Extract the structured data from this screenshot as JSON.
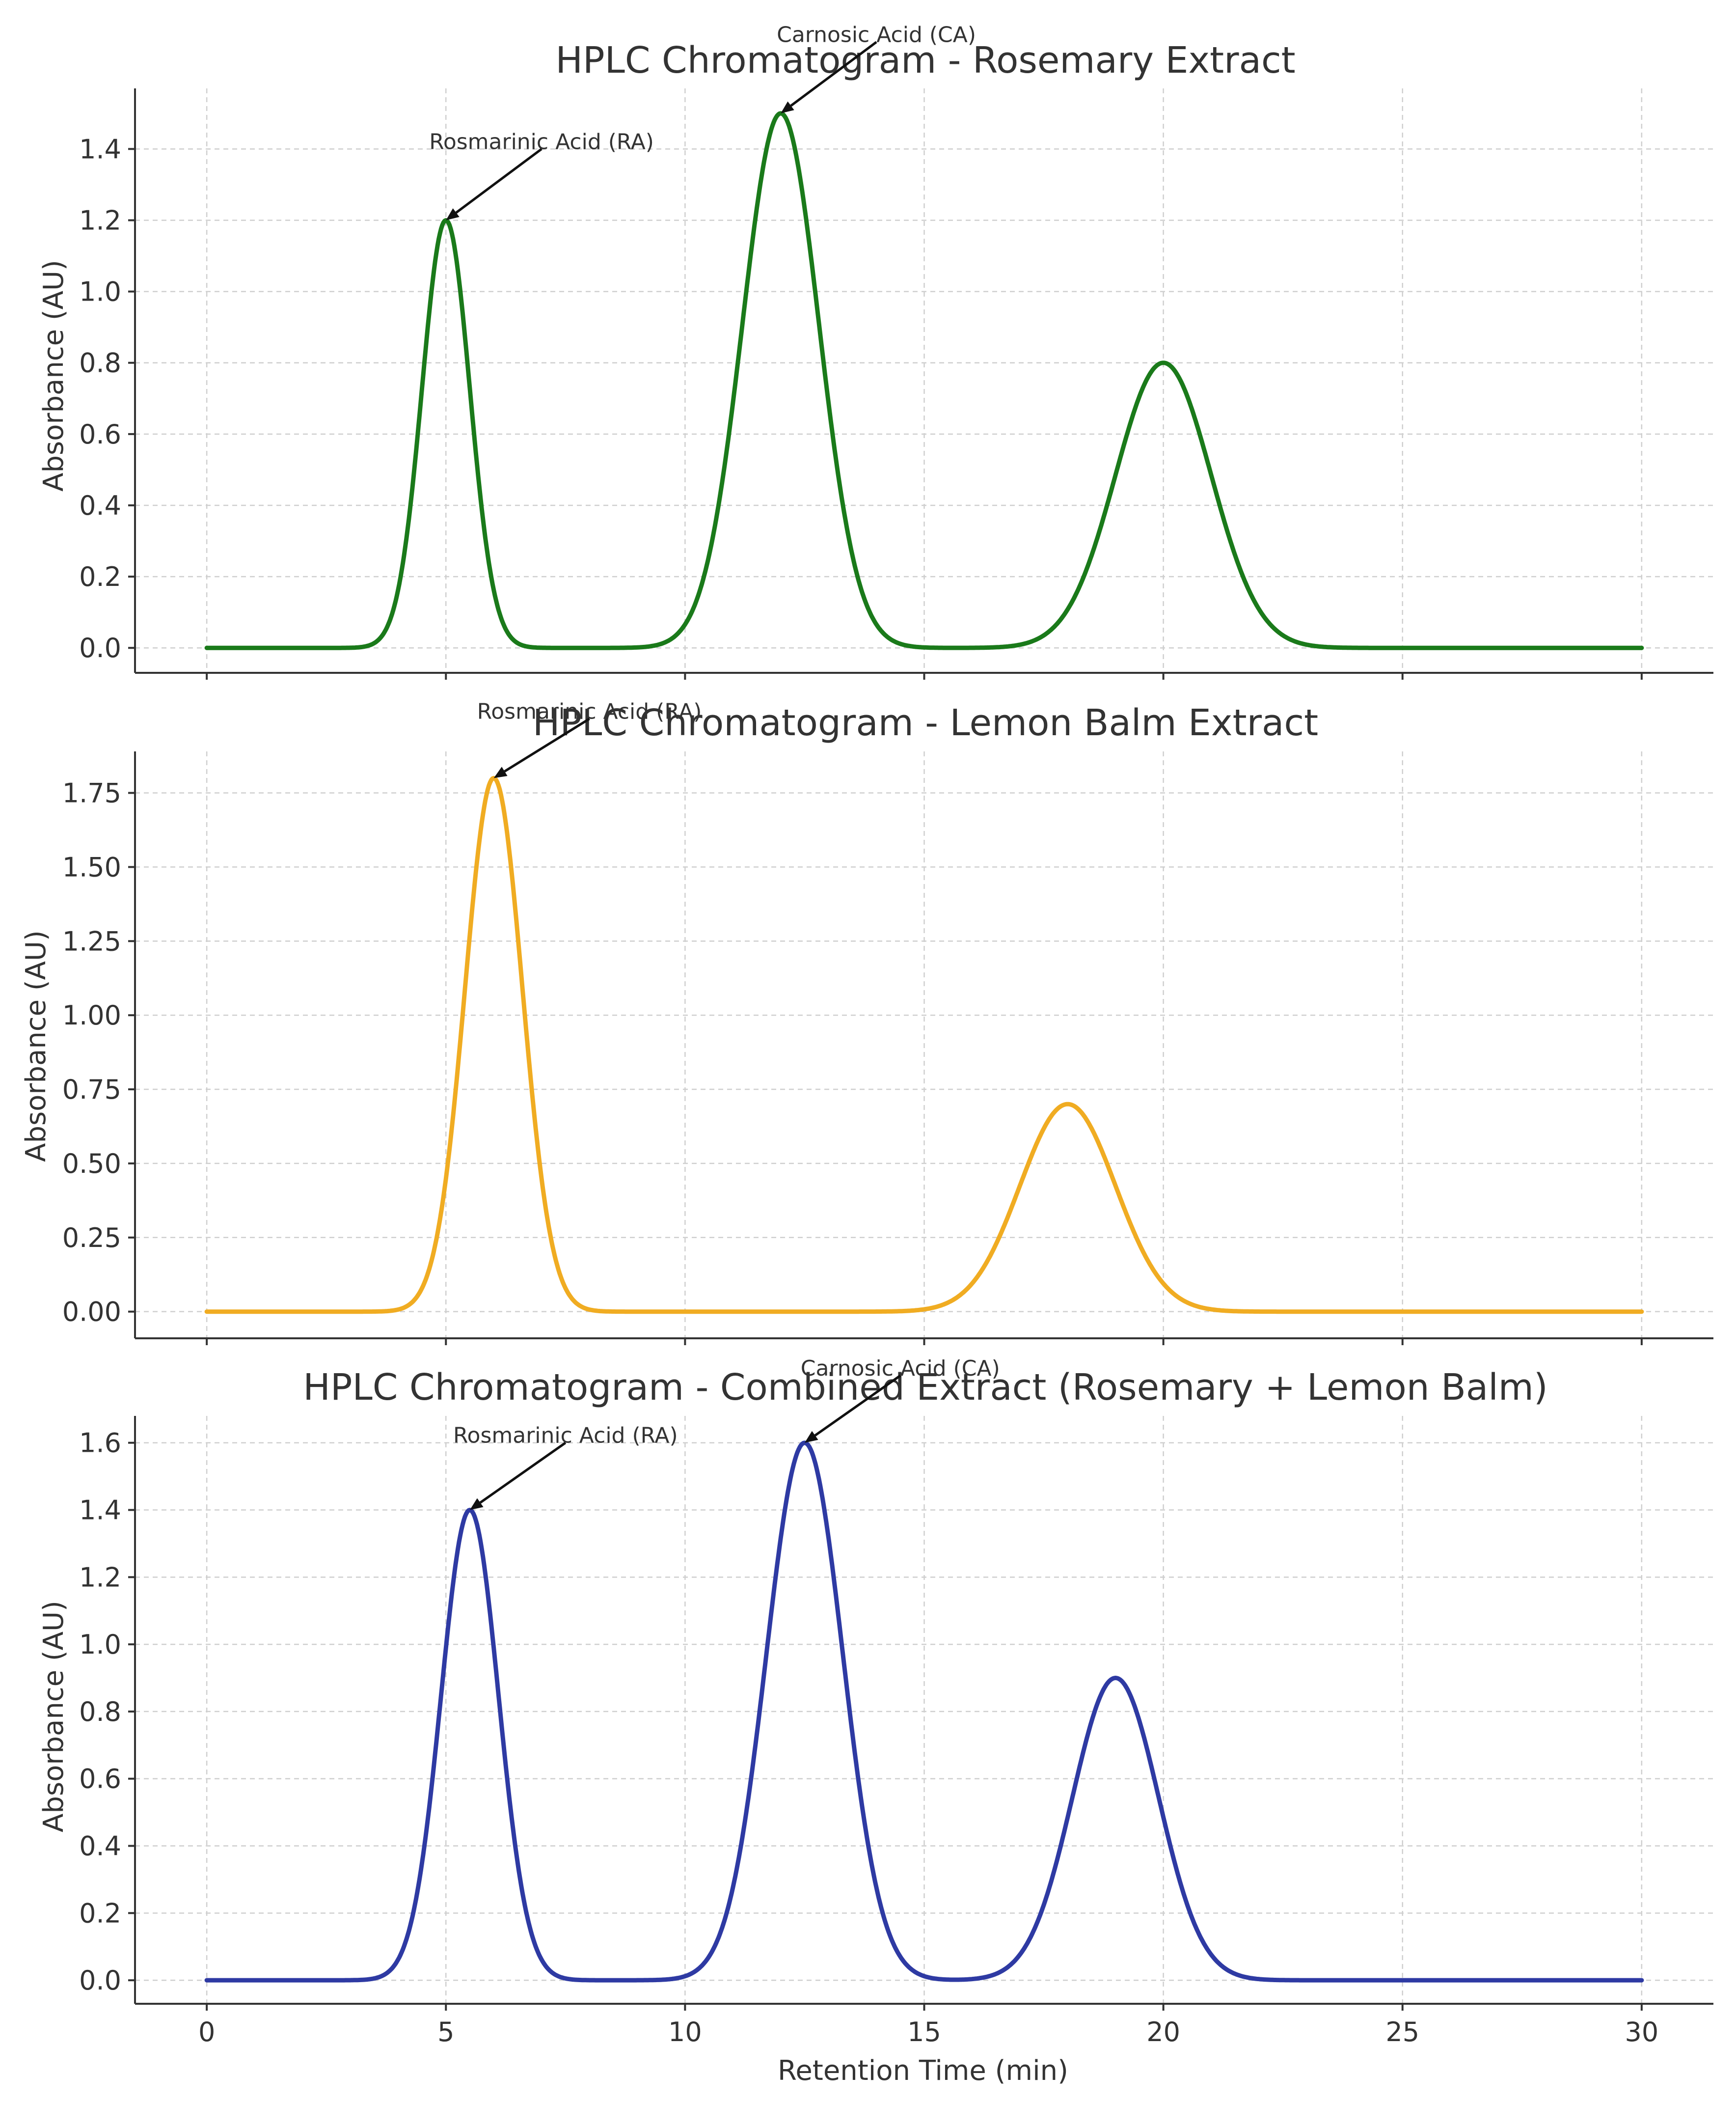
{
  "chart_data": [
    {
      "type": "line",
      "title": "HPLC Chromatogram - Rosemary Extract",
      "xlabel": "",
      "ylabel": "Absorbance (AU)",
      "xlim": [
        -1.5,
        31.5
      ],
      "ylim": [
        -0.07,
        1.57
      ],
      "xticks": [
        0,
        5,
        10,
        15,
        20,
        25,
        30
      ],
      "show_xtick_labels": false,
      "yticks": [
        0.0,
        0.2,
        0.4,
        0.6,
        0.8,
        1.0,
        1.2,
        1.4
      ],
      "ytick_labels": [
        "0.0",
        "0.2",
        "0.4",
        "0.6",
        "0.8",
        "1.0",
        "1.2",
        "1.4"
      ],
      "grid": true,
      "color": "#1a7a1a",
      "peaks": [
        {
          "rt": 5,
          "height": 1.2,
          "sigma": 0.5
        },
        {
          "rt": 12,
          "height": 1.5,
          "sigma": 0.8
        },
        {
          "rt": 20,
          "height": 0.8,
          "sigma": 1.0
        }
      ],
      "x_range": [
        0,
        30
      ],
      "annotations": [
        {
          "text": "Rosmarinic Acid (RA)",
          "x": 5,
          "y": 1.2,
          "text_x": 7,
          "text_y": 1.4
        },
        {
          "text": "Carnosic Acid (CA)",
          "x": 12,
          "y": 1.5,
          "text_x": 14,
          "text_y": 1.7
        }
      ]
    },
    {
      "type": "line",
      "title": "HPLC Chromatogram - Lemon Balm Extract",
      "xlabel": "",
      "ylabel": "Absorbance (AU)",
      "xlim": [
        -1.5,
        31.5
      ],
      "ylim": [
        -0.09,
        1.89
      ],
      "xticks": [
        0,
        5,
        10,
        15,
        20,
        25,
        30
      ],
      "show_xtick_labels": false,
      "yticks": [
        0.0,
        0.25,
        0.5,
        0.75,
        1.0,
        1.25,
        1.5,
        1.75
      ],
      "ytick_labels": [
        "0.00",
        "0.25",
        "0.50",
        "0.75",
        "1.00",
        "1.25",
        "1.50",
        "1.75"
      ],
      "grid": true,
      "color": "#f0ac22",
      "peaks": [
        {
          "rt": 6,
          "height": 1.8,
          "sigma": 0.6
        },
        {
          "rt": 18,
          "height": 0.7,
          "sigma": 1.0
        }
      ],
      "x_range": [
        0,
        30
      ],
      "annotations": [
        {
          "text": "Rosmarinic Acid (RA)",
          "x": 6,
          "y": 1.8,
          "text_x": 8,
          "text_y": 2.0
        }
      ]
    },
    {
      "type": "line",
      "title": "HPLC Chromatogram - Combined Extract (Rosemary + Lemon Balm)",
      "xlabel": "Retention Time (min)",
      "ylabel": "Absorbance (AU)",
      "xlim": [
        -1.5,
        31.5
      ],
      "ylim": [
        -0.07,
        1.68
      ],
      "xticks": [
        0,
        5,
        10,
        15,
        20,
        25,
        30
      ],
      "xtick_labels": [
        "0",
        "5",
        "10",
        "15",
        "20",
        "25",
        "30"
      ],
      "show_xtick_labels": true,
      "yticks": [
        0.0,
        0.2,
        0.4,
        0.6,
        0.8,
        1.0,
        1.2,
        1.4,
        1.6
      ],
      "ytick_labels": [
        "0.0",
        "0.2",
        "0.4",
        "0.6",
        "0.8",
        "1.0",
        "1.2",
        "1.4",
        "1.6"
      ],
      "grid": true,
      "color": "#2e3aa3",
      "peaks": [
        {
          "rt": 5.5,
          "height": 1.4,
          "sigma": 0.6
        },
        {
          "rt": 12.5,
          "height": 1.6,
          "sigma": 0.8
        },
        {
          "rt": 19,
          "height": 0.9,
          "sigma": 0.9
        }
      ],
      "x_range": [
        0,
        30
      ],
      "annotations": [
        {
          "text": "Rosmarinic Acid (RA)",
          "x": 5.5,
          "y": 1.4,
          "text_x": 7.5,
          "text_y": 1.6
        },
        {
          "text": "Carnosic Acid (CA)",
          "x": 12.5,
          "y": 1.6,
          "text_x": 14.5,
          "text_y": 1.8
        }
      ]
    }
  ]
}
